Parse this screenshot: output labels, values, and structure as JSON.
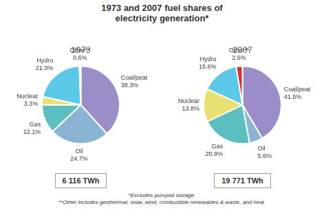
{
  "title": [
    "1973 and 2007 fuel shares of",
    "electricity generation*"
  ],
  "annotations": [
    "*Excludes pumped storage.",
    "**Other includes geothermal, solar, wind, combustible renewables & waste, and heat."
  ],
  "chart_data": [
    {
      "type": "pie",
      "title": "1973",
      "categories": [
        "Coal/peat",
        "Oil",
        "Gas",
        "Nuclear",
        "Hydro",
        "Other**"
      ],
      "values": [
        38.3,
        24.7,
        12.1,
        3.3,
        21.0,
        0.6
      ],
      "value_labels": [
        "38.3%",
        "24.7%",
        "12.1%",
        "3.3%",
        "21.0%",
        "0.6%"
      ],
      "colors": [
        "#9b8dc8",
        "#8ab4d4",
        "#5bbfbf",
        "#e8e070",
        "#5bc8e8",
        "#d43030"
      ],
      "data_labels": true,
      "annotations": [
        "6 116 TWh"
      ]
    },
    {
      "type": "pie",
      "title": "2007",
      "categories": [
        "Coal/peat",
        "Oil",
        "Gas",
        "Nuclear",
        "Hydro",
        "Other**"
      ],
      "values": [
        41.5,
        5.6,
        20.9,
        13.8,
        15.6,
        2.6
      ],
      "value_labels": [
        "41.5%",
        "5.6%",
        "20.9%",
        "13.8%",
        "15.6%",
        "2.6%"
      ],
      "colors": [
        "#9b8dc8",
        "#8ab4d4",
        "#5bbfbf",
        "#e8e070",
        "#5bc8e8",
        "#d43030"
      ],
      "data_labels": true,
      "annotations": [
        "19 771 TWh"
      ]
    }
  ]
}
